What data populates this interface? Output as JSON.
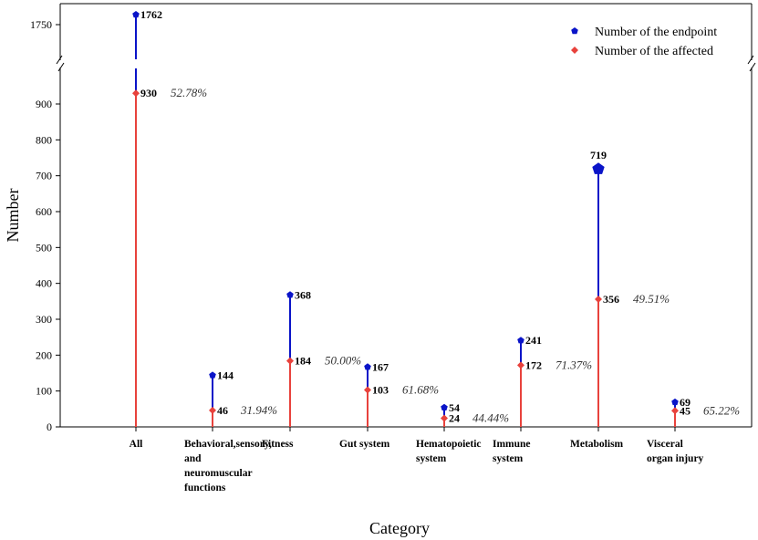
{
  "chart_data": {
    "type": "lollipop",
    "xlabel": "Category",
    "ylabel": "Number",
    "ylim_lower": [
      0,
      950
    ],
    "ylim_upper": [
      1735,
      1775
    ],
    "y_ticks_lower": [
      "0",
      "100",
      "200",
      "300",
      "400",
      "500",
      "600",
      "700",
      "800",
      "900"
    ],
    "y_ticks_upper": [
      "1750"
    ],
    "categories": [
      {
        "label_lines": [
          "All"
        ],
        "endpoint": 1762,
        "affected": 930,
        "percent": "52.78%"
      },
      {
        "label_lines": [
          "Behavioral,sensory,",
          "and",
          "neuromuscular",
          "functions"
        ],
        "endpoint": 144,
        "affected": 46,
        "percent": "31.94%"
      },
      {
        "label_lines": [
          "Fitness"
        ],
        "endpoint": 368,
        "affected": 184,
        "percent": "50.00%"
      },
      {
        "label_lines": [
          "Gut system"
        ],
        "endpoint": 167,
        "affected": 103,
        "percent": "61.68%"
      },
      {
        "label_lines": [
          "Hematopoietic",
          "system"
        ],
        "endpoint": 54,
        "affected": 24,
        "percent": "44.44%"
      },
      {
        "label_lines": [
          "Immune",
          "system"
        ],
        "endpoint": 241,
        "affected": 172,
        "percent": "71.37%"
      },
      {
        "label_lines": [
          "Metabolism"
        ],
        "endpoint": 719,
        "affected": 356,
        "percent": "49.51%"
      },
      {
        "label_lines": [
          "Visceral",
          "organ injury"
        ],
        "endpoint": 69,
        "affected": 45,
        "percent": "65.22%"
      }
    ],
    "series": [
      {
        "name": "Number of the endpoint",
        "color": "#0a14c8",
        "marker": "pentagon"
      },
      {
        "name": "Number of the affected",
        "color": "#e8423c",
        "marker": "diamond"
      }
    ],
    "legend_position": "top-right"
  }
}
